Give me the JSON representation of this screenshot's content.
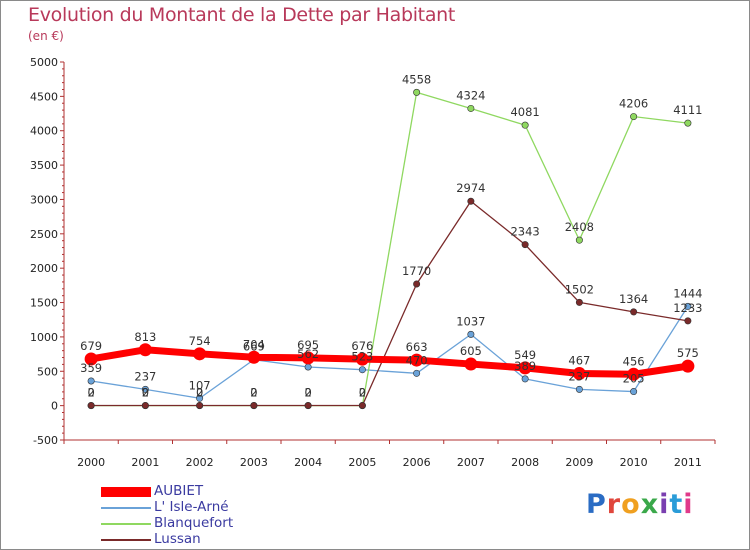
{
  "title": "Evolution du Montant de la Dette par Habitant",
  "subtitle": "(en €)",
  "logo": "Proxiti",
  "logo_colors": [
    "#2a6cc4",
    "#e0463c",
    "#f0a020",
    "#3aa84a",
    "#7a3fb0",
    "#2a9cd8",
    "#e03a8a"
  ],
  "chart_data": {
    "type": "line",
    "title": "Evolution du Montant de la Dette par Habitant",
    "subtitle": "(en €)",
    "x": [
      "2000",
      "2001",
      "2002",
      "2003",
      "2004",
      "2005",
      "2006",
      "2007",
      "2008",
      "2009",
      "2010",
      "2011"
    ],
    "ylim": [
      -500,
      5000
    ],
    "yticks": [
      -500,
      0,
      500,
      1000,
      1500,
      2000,
      2500,
      3000,
      3500,
      4000,
      4500,
      5000
    ],
    "grid": false,
    "legend_placement": "bottom-left",
    "series": [
      {
        "name": "AUBIET",
        "color": "#ff0000",
        "values": [
          679,
          813,
          754,
          704,
          695,
          676,
          663,
          605,
          549,
          467,
          456,
          575
        ]
      },
      {
        "name": "L' Isle-Arné",
        "color": "#6aa2d8",
        "values": [
          359,
          237,
          107,
          669,
          562,
          523,
          470,
          1037,
          389,
          237,
          205,
          1444
        ]
      },
      {
        "name": "Blanquefort",
        "color": "#8fd860",
        "values": [
          0,
          0,
          0,
          0,
          0,
          0,
          4558,
          4324,
          4081,
          2408,
          4206,
          4111
        ]
      },
      {
        "name": "Lussan",
        "color": "#7a2a2a",
        "values": [
          2,
          2,
          2,
          2,
          2,
          2,
          1770,
          2974,
          2343,
          1502,
          1364,
          1233
        ]
      }
    ],
    "value_labels": [
      [
        "679",
        "813",
        "754",
        "704",
        "695",
        "676",
        "663",
        "605",
        "549",
        "467",
        "456",
        "575"
      ],
      [
        "359",
        "237",
        "107",
        "669",
        "562",
        "523",
        "470",
        "1037",
        "389",
        "237",
        "205",
        "1444"
      ],
      [
        "0",
        "0",
        "0",
        "0",
        "0",
        "0",
        "4558",
        "4324",
        "4081",
        "2408",
        "4206",
        "4111"
      ],
      [
        "2",
        "2",
        "2",
        "2",
        "2",
        "2",
        "1770",
        "2974",
        "2343",
        "1502",
        "1364",
        "1233"
      ]
    ]
  }
}
